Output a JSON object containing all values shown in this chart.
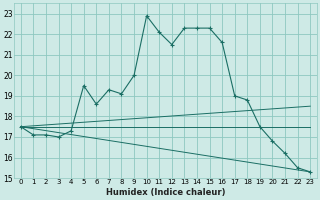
{
  "xlabel": "Humidex (Indice chaleur)",
  "bg_color": "#ceeae6",
  "grid_color": "#8ec8c0",
  "line_color": "#1a6e64",
  "xlim": [
    -0.5,
    23.5
  ],
  "ylim": [
    15,
    23.5
  ],
  "yticks": [
    15,
    16,
    17,
    18,
    19,
    20,
    21,
    22,
    23
  ],
  "xticks": [
    0,
    1,
    2,
    3,
    4,
    5,
    6,
    7,
    8,
    9,
    10,
    11,
    12,
    13,
    14,
    15,
    16,
    17,
    18,
    19,
    20,
    21,
    22,
    23
  ],
  "series1_x": [
    0,
    1,
    2,
    3,
    4,
    5,
    6,
    7,
    8,
    9,
    10,
    11,
    12,
    13,
    14,
    15,
    16,
    17,
    18,
    19,
    20,
    21,
    22,
    23
  ],
  "series1_y": [
    17.5,
    17.1,
    17.1,
    17.0,
    17.3,
    19.5,
    18.6,
    19.3,
    19.1,
    20.0,
    22.9,
    22.1,
    21.5,
    22.3,
    22.3,
    22.3,
    21.6,
    19.0,
    18.8,
    17.5,
    16.8,
    16.2,
    15.5,
    15.3
  ],
  "fan_lines": [
    {
      "x": [
        0,
        23
      ],
      "y": [
        17.5,
        18.5
      ]
    },
    {
      "x": [
        0,
        23
      ],
      "y": [
        17.5,
        17.5
      ]
    },
    {
      "x": [
        0,
        23
      ],
      "y": [
        17.5,
        15.3
      ]
    }
  ]
}
